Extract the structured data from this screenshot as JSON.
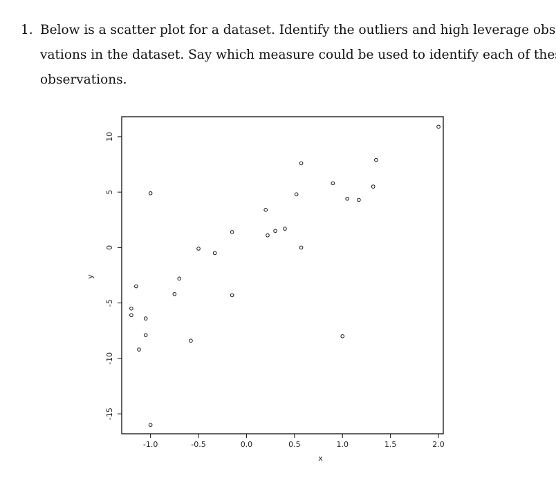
{
  "question": {
    "number": "1.",
    "line1": "Below is a scatter plot for a dataset. Identify the outliers and high leverage obser-",
    "line2": "vations in the dataset. Say which measure could be used to identify each of these",
    "line3": "observations."
  },
  "chart_data": {
    "type": "scatter",
    "xlabel": "x",
    "ylabel": "y",
    "xlim": [
      -1.3,
      2.05
    ],
    "ylim": [
      -16.8,
      11.8
    ],
    "xticks": [
      -1.0,
      -0.5,
      0.0,
      0.5,
      1.0,
      1.5,
      2.0
    ],
    "xtick_labels": [
      "-1.0",
      "-0.5",
      "0.0",
      "0.5",
      "1.0",
      "1.5",
      "2.0"
    ],
    "yticks": [
      -15,
      -10,
      -5,
      0,
      5,
      10
    ],
    "ytick_labels": [
      "-15",
      "-10",
      "-5",
      "0",
      "5",
      "10"
    ],
    "grid": false,
    "marker": "open-circle",
    "points": [
      {
        "x": -1.2,
        "y": -5.5
      },
      {
        "x": -1.2,
        "y": -6.1
      },
      {
        "x": -1.15,
        "y": -3.5
      },
      {
        "x": -1.12,
        "y": -9.2
      },
      {
        "x": -1.05,
        "y": -6.4
      },
      {
        "x": -1.05,
        "y": -7.9
      },
      {
        "x": -1.0,
        "y": 4.9
      },
      {
        "x": -1.0,
        "y": -16.0
      },
      {
        "x": -0.75,
        "y": -4.2
      },
      {
        "x": -0.7,
        "y": -2.8
      },
      {
        "x": -0.58,
        "y": -8.4
      },
      {
        "x": -0.5,
        "y": -0.1
      },
      {
        "x": -0.33,
        "y": -0.5
      },
      {
        "x": -0.15,
        "y": 1.4
      },
      {
        "x": -0.15,
        "y": -4.3
      },
      {
        "x": 0.2,
        "y": 3.4
      },
      {
        "x": 0.22,
        "y": 1.1
      },
      {
        "x": 0.3,
        "y": 1.5
      },
      {
        "x": 0.4,
        "y": 1.7
      },
      {
        "x": 0.52,
        "y": 4.8
      },
      {
        "x": 0.57,
        "y": 7.6
      },
      {
        "x": 0.57,
        "y": 0.0
      },
      {
        "x": 0.9,
        "y": 5.8
      },
      {
        "x": 1.0,
        "y": -8.0
      },
      {
        "x": 1.05,
        "y": 4.4
      },
      {
        "x": 1.17,
        "y": 4.3
      },
      {
        "x": 1.32,
        "y": 5.5
      },
      {
        "x": 1.35,
        "y": 7.9
      },
      {
        "x": 2.0,
        "y": 10.9
      }
    ]
  }
}
